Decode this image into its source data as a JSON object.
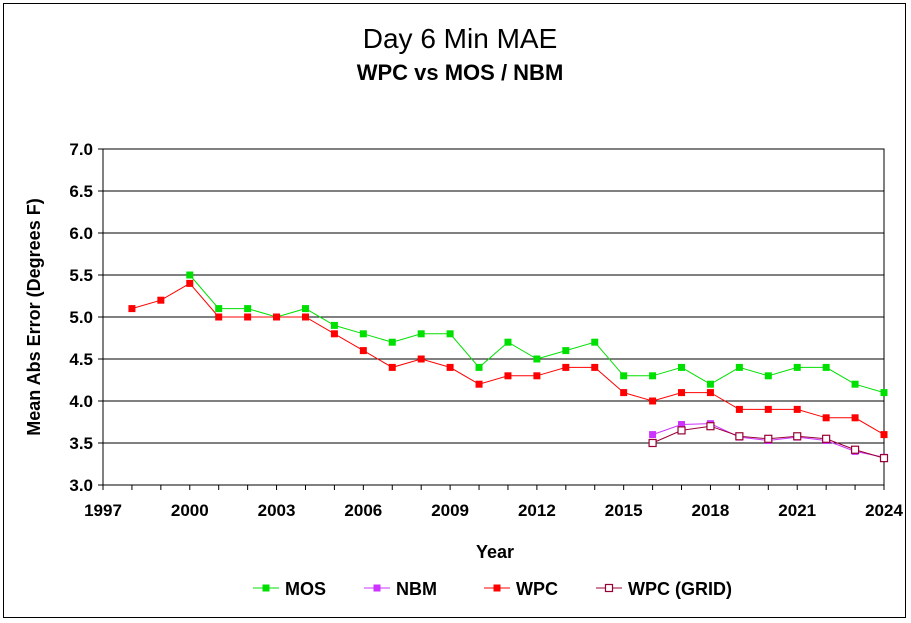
{
  "chart_data": {
    "type": "line",
    "title": "Day 6 Min MAE",
    "subtitle": "WPC vs MOS / NBM",
    "xlabel": "Year",
    "ylabel": "Mean Abs Error (Degrees F)",
    "xlim": [
      1997,
      2024
    ],
    "ylim": [
      3.0,
      7.0
    ],
    "x_ticks": [
      "1997",
      "2000",
      "2003",
      "2006",
      "2009",
      "2012",
      "2015",
      "2018",
      "2021",
      "2024"
    ],
    "y_ticks": [
      "3.0",
      "3.5",
      "4.0",
      "4.5",
      "5.0",
      "5.5",
      "6.0",
      "6.5",
      "7.0"
    ],
    "grid": true,
    "legend_position": "bottom",
    "series": [
      {
        "name": "MOS",
        "color": "#00e000",
        "marker": "filled-square",
        "x": [
          2000,
          2001,
          2002,
          2003,
          2004,
          2005,
          2006,
          2007,
          2008,
          2009,
          2010,
          2011,
          2012,
          2013,
          2014,
          2015,
          2016,
          2017,
          2018,
          2019,
          2020,
          2021,
          2022,
          2023,
          2024
        ],
        "values": [
          5.5,
          5.1,
          5.1,
          5.0,
          5.1,
          4.9,
          4.8,
          4.7,
          4.8,
          4.8,
          4.4,
          4.7,
          4.5,
          4.6,
          4.7,
          4.3,
          4.3,
          4.4,
          4.2,
          4.4,
          4.3,
          4.4,
          4.4,
          4.2,
          4.1
        ]
      },
      {
        "name": "NBM",
        "color": "#cc33ff",
        "marker": "filled-square",
        "x": [
          2016,
          2017,
          2018,
          2019,
          2020,
          2021,
          2022,
          2023,
          2024
        ],
        "values": [
          3.6,
          3.72,
          3.73,
          3.57,
          3.53,
          3.57,
          3.53,
          3.4,
          3.33
        ]
      },
      {
        "name": "WPC",
        "color": "#ff0000",
        "marker": "filled-square",
        "x": [
          1998,
          1999,
          2000,
          2001,
          2002,
          2003,
          2004,
          2005,
          2006,
          2007,
          2008,
          2009,
          2010,
          2011,
          2012,
          2013,
          2014,
          2015,
          2016,
          2017,
          2018,
          2019,
          2020,
          2021,
          2022,
          2023,
          2024
        ],
        "values": [
          5.1,
          5.2,
          5.4,
          5.0,
          5.0,
          5.0,
          5.0,
          4.8,
          4.6,
          4.4,
          4.5,
          4.4,
          4.2,
          4.3,
          4.3,
          4.4,
          4.4,
          4.1,
          4.0,
          4.1,
          4.1,
          3.9,
          3.9,
          3.9,
          3.8,
          3.8,
          3.6
        ]
      },
      {
        "name": "WPC (GRID)",
        "color": "#990033",
        "marker": "hollow-square",
        "x": [
          2016,
          2017,
          2018,
          2019,
          2020,
          2021,
          2022,
          2023,
          2024
        ],
        "values": [
          3.5,
          3.65,
          3.7,
          3.58,
          3.55,
          3.58,
          3.55,
          3.42,
          3.32
        ]
      }
    ]
  }
}
